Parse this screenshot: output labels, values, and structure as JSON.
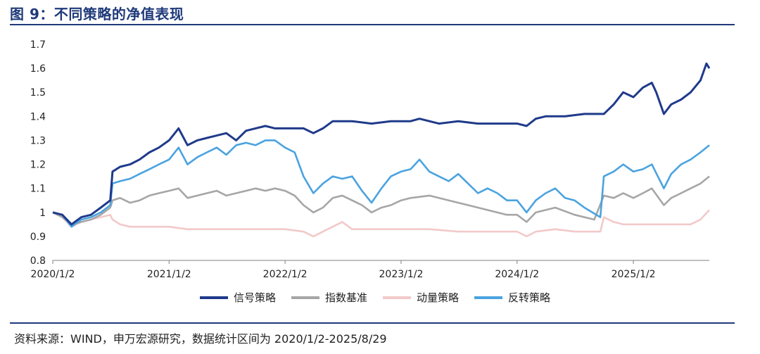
{
  "figure": {
    "title": "图 9：不同策略的净值表现",
    "source": "资料来源：WIND，申万宏源研究，数据统计区间为 2020/1/2-2025/8/29"
  },
  "chart_data": {
    "type": "line",
    "title": "",
    "xlabel": "",
    "ylabel": "",
    "ylim": [
      0.8,
      1.7
    ],
    "yticks": [
      "0.8",
      "0.9",
      "1",
      "1.1",
      "1.2",
      "1.3",
      "1.4",
      "1.5",
      "1.6",
      "1.7"
    ],
    "xticks": [
      "2020/1/2",
      "2021/1/2",
      "2022/1/2",
      "2023/1/2",
      "2024/1/2",
      "2025/1/2"
    ],
    "grid": false,
    "legend_position": "bottom",
    "series": [
      {
        "name": "信号策略",
        "color": "#1f3a8a",
        "points": [
          [
            "2020/1/2",
            1.0
          ],
          [
            "2020/2/1",
            0.99
          ],
          [
            "2020/3/1",
            0.95
          ],
          [
            "2020/4/1",
            0.98
          ],
          [
            "2020/5/1",
            0.99
          ],
          [
            "2020/6/1",
            1.02
          ],
          [
            "2020/7/1",
            1.05
          ],
          [
            "2020/7/8",
            1.17
          ],
          [
            "2020/8/1",
            1.19
          ],
          [
            "2020/9/1",
            1.2
          ],
          [
            "2020/10/1",
            1.22
          ],
          [
            "2020/11/1",
            1.25
          ],
          [
            "2020/12/1",
            1.27
          ],
          [
            "2021/1/2",
            1.3
          ],
          [
            "2021/2/1",
            1.35
          ],
          [
            "2021/3/1",
            1.28
          ],
          [
            "2021/4/1",
            1.3
          ],
          [
            "2021/5/1",
            1.31
          ],
          [
            "2021/6/1",
            1.32
          ],
          [
            "2021/7/1",
            1.33
          ],
          [
            "2021/8/1",
            1.3
          ],
          [
            "2021/9/1",
            1.34
          ],
          [
            "2021/10/1",
            1.35
          ],
          [
            "2021/11/1",
            1.36
          ],
          [
            "2021/12/1",
            1.35
          ],
          [
            "2022/1/2",
            1.35
          ],
          [
            "2022/3/1",
            1.35
          ],
          [
            "2022/4/1",
            1.33
          ],
          [
            "2022/5/1",
            1.35
          ],
          [
            "2022/6/1",
            1.38
          ],
          [
            "2022/8/1",
            1.38
          ],
          [
            "2022/10/1",
            1.37
          ],
          [
            "2022/12/1",
            1.38
          ],
          [
            "2023/1/2",
            1.38
          ],
          [
            "2023/2/1",
            1.38
          ],
          [
            "2023/3/1",
            1.39
          ],
          [
            "2023/5/1",
            1.37
          ],
          [
            "2023/7/1",
            1.38
          ],
          [
            "2023/9/1",
            1.37
          ],
          [
            "2023/11/1",
            1.37
          ],
          [
            "2024/1/2",
            1.37
          ],
          [
            "2024/2/1",
            1.36
          ],
          [
            "2024/3/1",
            1.39
          ],
          [
            "2024/4/1",
            1.4
          ],
          [
            "2024/6/1",
            1.4
          ],
          [
            "2024/8/1",
            1.41
          ],
          [
            "2024/10/1",
            1.41
          ],
          [
            "2024/11/1",
            1.45
          ],
          [
            "2024/12/1",
            1.5
          ],
          [
            "2025/1/2",
            1.48
          ],
          [
            "2025/2/1",
            1.52
          ],
          [
            "2025/3/1",
            1.54
          ],
          [
            "2025/3/15",
            1.5
          ],
          [
            "2025/4/8",
            1.41
          ],
          [
            "2025/5/1",
            1.45
          ],
          [
            "2025/6/1",
            1.47
          ],
          [
            "2025/7/1",
            1.5
          ],
          [
            "2025/8/1",
            1.55
          ],
          [
            "2025/8/20",
            1.62
          ],
          [
            "2025/8/29",
            1.6
          ]
        ]
      },
      {
        "name": "指数基准",
        "color": "#a6a6a6",
        "points": [
          [
            "2020/1/2",
            1.0
          ],
          [
            "2020/2/1",
            0.98
          ],
          [
            "2020/3/1",
            0.95
          ],
          [
            "2020/4/1",
            0.96
          ],
          [
            "2020/5/1",
            0.97
          ],
          [
            "2020/6/1",
            0.99
          ],
          [
            "2020/7/1",
            1.02
          ],
          [
            "2020/7/8",
            1.05
          ],
          [
            "2020/8/1",
            1.06
          ],
          [
            "2020/9/1",
            1.04
          ],
          [
            "2020/10/1",
            1.05
          ],
          [
            "2020/11/1",
            1.07
          ],
          [
            "2020/12/1",
            1.08
          ],
          [
            "2021/1/2",
            1.09
          ],
          [
            "2021/2/1",
            1.1
          ],
          [
            "2021/3/1",
            1.06
          ],
          [
            "2021/4/1",
            1.07
          ],
          [
            "2021/5/1",
            1.08
          ],
          [
            "2021/6/1",
            1.09
          ],
          [
            "2021/7/1",
            1.07
          ],
          [
            "2021/8/1",
            1.08
          ],
          [
            "2021/9/1",
            1.09
          ],
          [
            "2021/10/1",
            1.1
          ],
          [
            "2021/11/1",
            1.09
          ],
          [
            "2021/12/1",
            1.1
          ],
          [
            "2022/1/2",
            1.09
          ],
          [
            "2022/2/1",
            1.07
          ],
          [
            "2022/3/1",
            1.03
          ],
          [
            "2022/4/1",
            1.0
          ],
          [
            "2022/5/1",
            1.02
          ],
          [
            "2022/6/1",
            1.06
          ],
          [
            "2022/7/1",
            1.07
          ],
          [
            "2022/9/1",
            1.03
          ],
          [
            "2022/10/1",
            1.0
          ],
          [
            "2022/11/1",
            1.02
          ],
          [
            "2022/12/1",
            1.03
          ],
          [
            "2023/1/2",
            1.05
          ],
          [
            "2023/2/1",
            1.06
          ],
          [
            "2023/4/1",
            1.07
          ],
          [
            "2023/6/1",
            1.05
          ],
          [
            "2023/8/1",
            1.03
          ],
          [
            "2023/10/1",
            1.01
          ],
          [
            "2023/12/1",
            0.99
          ],
          [
            "2024/1/2",
            0.99
          ],
          [
            "2024/2/1",
            0.96
          ],
          [
            "2024/3/1",
            1.0
          ],
          [
            "2024/5/1",
            1.02
          ],
          [
            "2024/7/1",
            0.99
          ],
          [
            "2024/9/1",
            0.97
          ],
          [
            "2024/10/1",
            1.07
          ],
          [
            "2024/11/1",
            1.06
          ],
          [
            "2024/12/1",
            1.08
          ],
          [
            "2025/1/2",
            1.06
          ],
          [
            "2025/2/1",
            1.08
          ],
          [
            "2025/3/1",
            1.1
          ],
          [
            "2025/4/8",
            1.03
          ],
          [
            "2025/5/1",
            1.06
          ],
          [
            "2025/6/1",
            1.08
          ],
          [
            "2025/7/1",
            1.1
          ],
          [
            "2025/8/1",
            1.12
          ],
          [
            "2025/8/29",
            1.15
          ]
        ]
      },
      {
        "name": "动量策略",
        "color": "#f2c9c9",
        "points": [
          [
            "2020/1/2",
            1.0
          ],
          [
            "2020/2/1",
            0.98
          ],
          [
            "2020/3/1",
            0.94
          ],
          [
            "2020/4/1",
            0.96
          ],
          [
            "2020/5/1",
            0.97
          ],
          [
            "2020/6/1",
            0.98
          ],
          [
            "2020/7/1",
            0.99
          ],
          [
            "2020/7/8",
            0.97
          ],
          [
            "2020/8/1",
            0.95
          ],
          [
            "2020/9/1",
            0.94
          ],
          [
            "2020/11/1",
            0.94
          ],
          [
            "2021/1/2",
            0.94
          ],
          [
            "2021/3/1",
            0.93
          ],
          [
            "2021/6/1",
            0.93
          ],
          [
            "2021/9/1",
            0.93
          ],
          [
            "2021/12/1",
            0.93
          ],
          [
            "2022/1/2",
            0.93
          ],
          [
            "2022/3/1",
            0.92
          ],
          [
            "2022/4/1",
            0.9
          ],
          [
            "2022/5/1",
            0.92
          ],
          [
            "2022/7/1",
            0.96
          ],
          [
            "2022/8/1",
            0.93
          ],
          [
            "2022/10/1",
            0.93
          ],
          [
            "2023/1/2",
            0.93
          ],
          [
            "2023/4/1",
            0.93
          ],
          [
            "2023/7/1",
            0.92
          ],
          [
            "2023/10/1",
            0.92
          ],
          [
            "2024/1/2",
            0.92
          ],
          [
            "2024/2/1",
            0.9
          ],
          [
            "2024/3/1",
            0.92
          ],
          [
            "2024/5/1",
            0.93
          ],
          [
            "2024/7/1",
            0.92
          ],
          [
            "2024/9/20",
            0.92
          ],
          [
            "2024/10/1",
            0.98
          ],
          [
            "2024/11/1",
            0.96
          ],
          [
            "2024/12/1",
            0.95
          ],
          [
            "2025/1/2",
            0.95
          ],
          [
            "2025/3/1",
            0.95
          ],
          [
            "2025/5/1",
            0.95
          ],
          [
            "2025/7/1",
            0.95
          ],
          [
            "2025/8/1",
            0.97
          ],
          [
            "2025/8/29",
            1.01
          ]
        ]
      },
      {
        "name": "反转策略",
        "color": "#4aa3df",
        "points": [
          [
            "2020/1/2",
            1.0
          ],
          [
            "2020/2/1",
            0.99
          ],
          [
            "2020/3/1",
            0.94
          ],
          [
            "2020/4/1",
            0.97
          ],
          [
            "2020/5/1",
            0.98
          ],
          [
            "2020/6/1",
            1.0
          ],
          [
            "2020/7/1",
            1.03
          ],
          [
            "2020/7/8",
            1.12
          ],
          [
            "2020/8/1",
            1.13
          ],
          [
            "2020/9/1",
            1.14
          ],
          [
            "2020/10/1",
            1.16
          ],
          [
            "2020/11/1",
            1.18
          ],
          [
            "2020/12/1",
            1.2
          ],
          [
            "2021/1/2",
            1.22
          ],
          [
            "2021/2/1",
            1.27
          ],
          [
            "2021/3/1",
            1.2
          ],
          [
            "2021/4/1",
            1.23
          ],
          [
            "2021/5/1",
            1.25
          ],
          [
            "2021/6/1",
            1.27
          ],
          [
            "2021/7/1",
            1.24
          ],
          [
            "2021/8/1",
            1.28
          ],
          [
            "2021/9/1",
            1.29
          ],
          [
            "2021/10/1",
            1.28
          ],
          [
            "2021/11/1",
            1.3
          ],
          [
            "2021/12/1",
            1.3
          ],
          [
            "2022/1/2",
            1.27
          ],
          [
            "2022/2/1",
            1.25
          ],
          [
            "2022/3/1",
            1.15
          ],
          [
            "2022/4/1",
            1.08
          ],
          [
            "2022/5/1",
            1.12
          ],
          [
            "2022/6/1",
            1.15
          ],
          [
            "2022/7/1",
            1.14
          ],
          [
            "2022/8/1",
            1.15
          ],
          [
            "2022/9/1",
            1.09
          ],
          [
            "2022/10/1",
            1.04
          ],
          [
            "2022/11/1",
            1.1
          ],
          [
            "2022/12/1",
            1.15
          ],
          [
            "2023/1/2",
            1.17
          ],
          [
            "2023/2/1",
            1.18
          ],
          [
            "2023/3/1",
            1.22
          ],
          [
            "2023/4/1",
            1.17
          ],
          [
            "2023/5/1",
            1.15
          ],
          [
            "2023/6/1",
            1.13
          ],
          [
            "2023/7/1",
            1.16
          ],
          [
            "2023/8/1",
            1.12
          ],
          [
            "2023/9/1",
            1.08
          ],
          [
            "2023/10/1",
            1.1
          ],
          [
            "2023/11/1",
            1.08
          ],
          [
            "2023/12/1",
            1.05
          ],
          [
            "2024/1/2",
            1.05
          ],
          [
            "2024/2/1",
            1.0
          ],
          [
            "2024/3/1",
            1.05
          ],
          [
            "2024/4/1",
            1.08
          ],
          [
            "2024/5/1",
            1.1
          ],
          [
            "2024/6/1",
            1.06
          ],
          [
            "2024/7/1",
            1.05
          ],
          [
            "2024/8/1",
            1.02
          ],
          [
            "2024/9/20",
            0.98
          ],
          [
            "2024/10/1",
            1.15
          ],
          [
            "2024/11/1",
            1.17
          ],
          [
            "2024/12/1",
            1.2
          ],
          [
            "2025/1/2",
            1.17
          ],
          [
            "2025/2/1",
            1.18
          ],
          [
            "2025/3/1",
            1.2
          ],
          [
            "2025/4/8",
            1.1
          ],
          [
            "2025/5/1",
            1.16
          ],
          [
            "2025/6/1",
            1.2
          ],
          [
            "2025/7/1",
            1.22
          ],
          [
            "2025/8/1",
            1.25
          ],
          [
            "2025/8/29",
            1.28
          ]
        ]
      }
    ]
  }
}
